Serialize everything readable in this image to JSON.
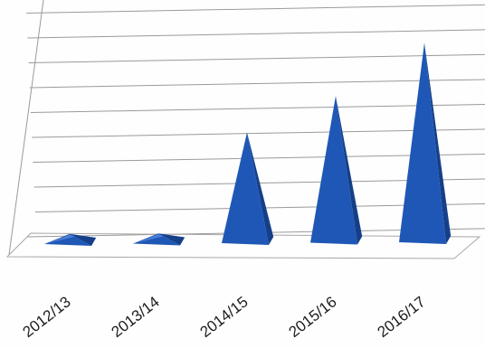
{
  "chart_data": {
    "type": "bar",
    "bar_shape": "pyramid",
    "style": "3d",
    "categories": [
      "2012/13",
      "2013/14",
      "2014/15",
      "2015/16",
      "2016/17"
    ],
    "values": [
      0.2,
      0.2,
      4.4,
      5.9,
      8.1
    ],
    "title": "",
    "xlabel": "",
    "ylabel": "",
    "ylim": [
      0,
      9
    ],
    "grid": true,
    "legend": "none",
    "colors": {
      "bar_front": "#1f57b6",
      "bar_side": "#163f8a",
      "bar_top": "#4a7fd6",
      "grid": "#9a9a9a",
      "floor": "#a7a7a7"
    }
  }
}
